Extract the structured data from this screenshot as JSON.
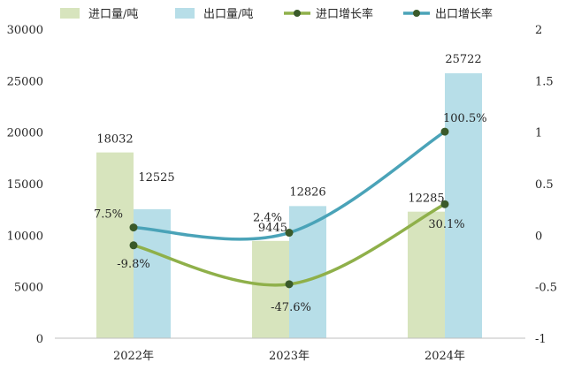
{
  "chart_data": {
    "type": "bar",
    "categories": [
      "2022年",
      "2023年",
      "2024年"
    ],
    "series": [
      {
        "name": "进口量/吨",
        "kind": "bar",
        "axis": "left",
        "color": "#d7e4bd",
        "values": [
          18032,
          9445,
          12285
        ],
        "labels": [
          "18032",
          "9445",
          "12285"
        ]
      },
      {
        "name": "出口量/吨",
        "kind": "bar",
        "axis": "left",
        "color": "#b7dee8",
        "values": [
          12525,
          12826,
          25722
        ],
        "labels": [
          "12525",
          "12826",
          "25722"
        ]
      },
      {
        "name": "进口增长率",
        "kind": "line",
        "axis": "right",
        "color": "#8fb04a",
        "values": [
          -0.098,
          -0.476,
          0.301
        ],
        "labels": [
          "-9.8%",
          "-47.6%",
          "30.1%"
        ]
      },
      {
        "name": "出口增长率",
        "kind": "line",
        "axis": "right",
        "color": "#4aa3b8",
        "values": [
          0.075,
          0.024,
          1.005
        ],
        "labels": [
          "7.5%",
          "2.4%",
          "100.5%"
        ]
      }
    ],
    "y_left": {
      "min": 0,
      "max": 30000,
      "ticks": [
        "0",
        "5000",
        "10000",
        "15000",
        "20000",
        "25000",
        "30000"
      ]
    },
    "y_right": {
      "min": -1,
      "max": 2,
      "ticks": [
        "-1",
        "-0.5",
        "0",
        "0.5",
        "1",
        "1.5",
        "2"
      ]
    },
    "grid": false,
    "legend_position": "top"
  }
}
